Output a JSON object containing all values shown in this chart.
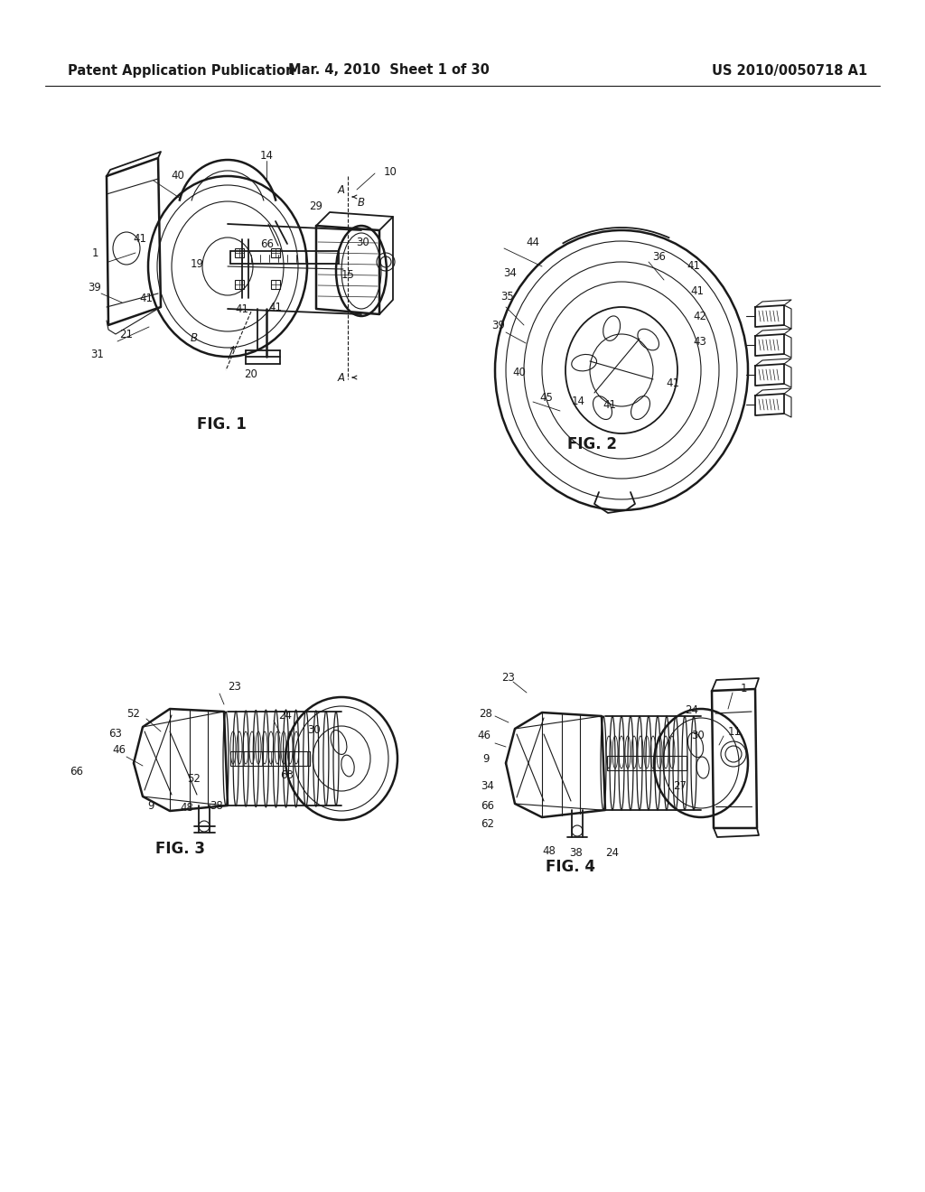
{
  "background_color": "#ffffff",
  "header_left": "Patent Application Publication",
  "header_center": "Mar. 4, 2010  Sheet 1 of 30",
  "header_right": "US 2010/0050718 A1",
  "header_fontsize": 10.5,
  "fig_label_fontsize": 12,
  "annotation_fontsize": 8.5,
  "line_color": "#1a1a1a",
  "text_color": "#1a1a1a",
  "lw_main": 1.3,
  "lw_thin": 0.8,
  "lw_thick": 1.8
}
